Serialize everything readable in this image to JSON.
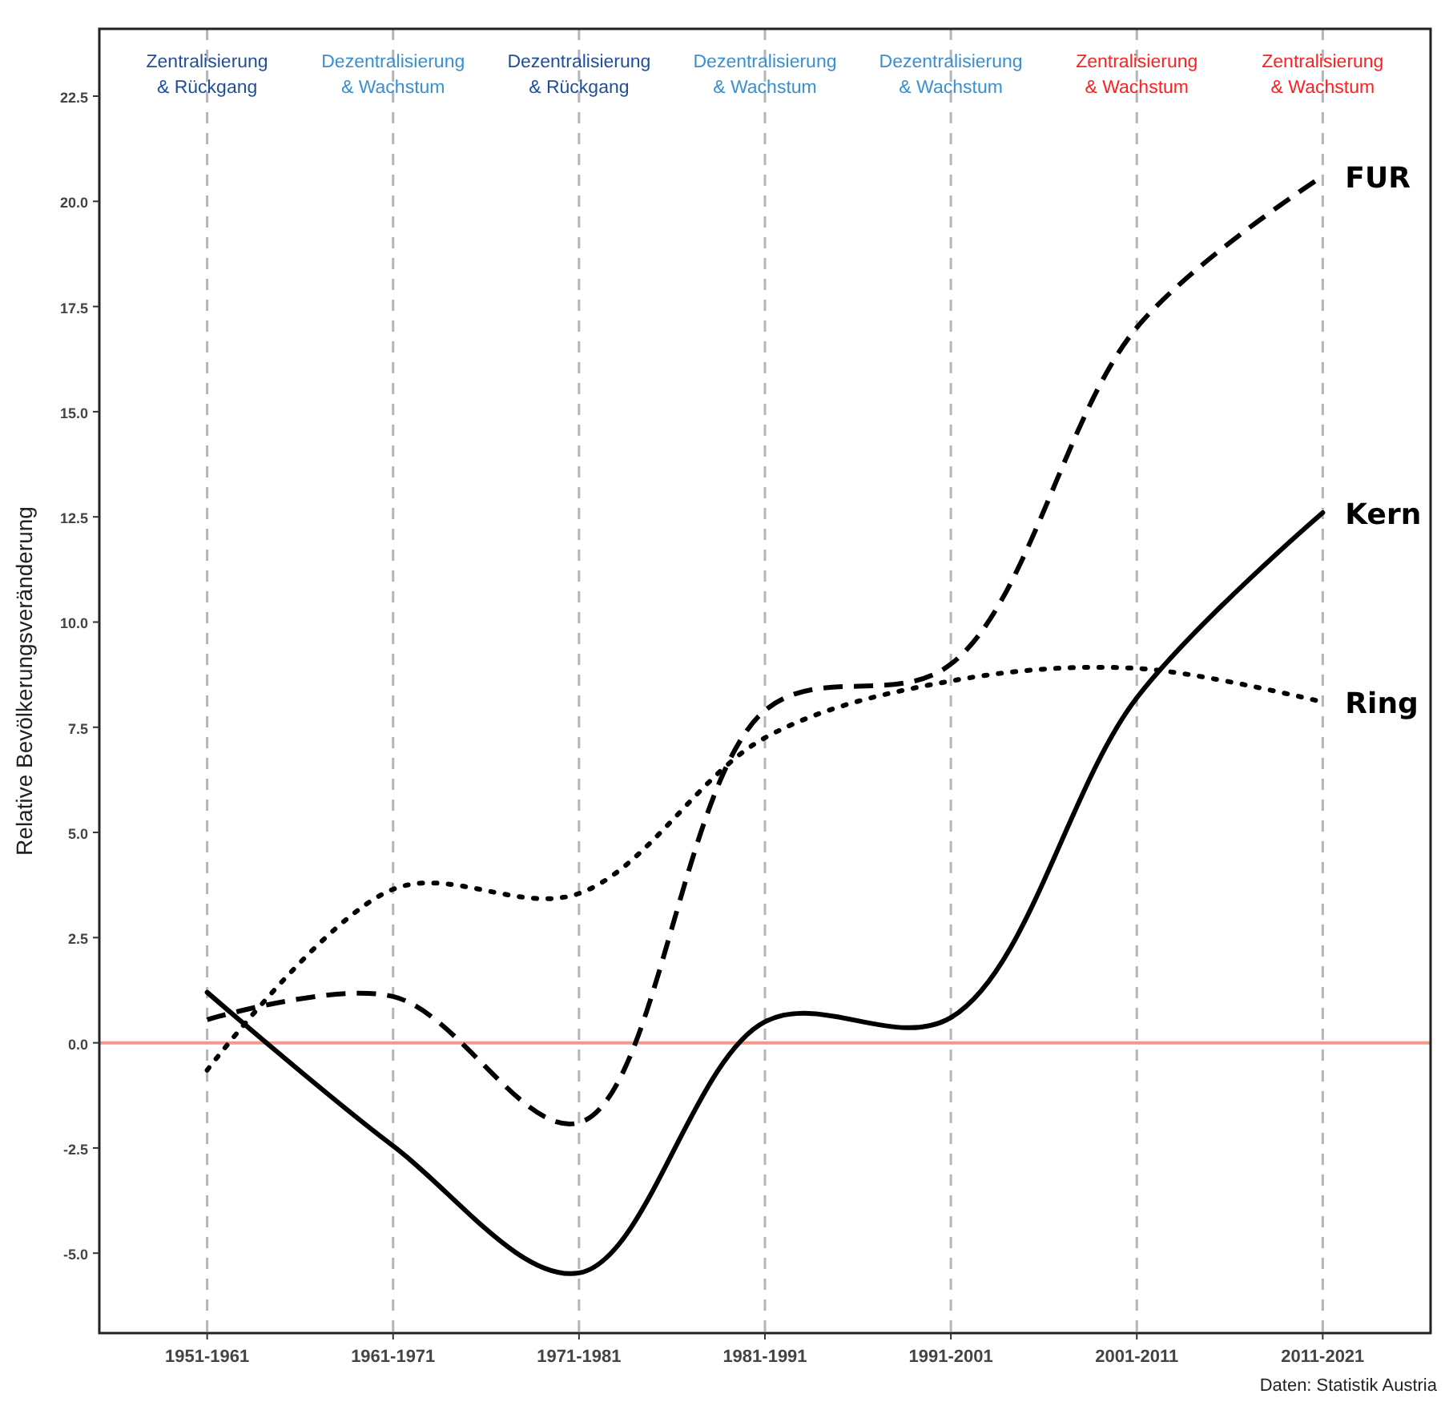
{
  "chart_data": {
    "type": "line",
    "ylabel": "Relative Bevölkerungsveränderung",
    "categories": [
      "1951-1961",
      "1961-1971",
      "1971-1981",
      "1981-1991",
      "1991-2001",
      "2001-2011",
      "2011-2021"
    ],
    "ylim": [
      -6.9,
      24.1
    ],
    "yticks": [
      {
        "value": -5,
        "label": "-5.0"
      },
      {
        "value": -2.5,
        "label": "-2.5"
      },
      {
        "value": 0,
        "label": "0.0"
      },
      {
        "value": 2.5,
        "label": "2.5"
      },
      {
        "value": 5,
        "label": "5.0"
      },
      {
        "value": 7.5,
        "label": "7.5"
      },
      {
        "value": 10,
        "label": "10.0"
      },
      {
        "value": 12.5,
        "label": "12.5"
      },
      {
        "value": 15,
        "label": "15.0"
      },
      {
        "value": 17.5,
        "label": "17.5"
      },
      {
        "value": 20,
        "label": "20.0"
      },
      {
        "value": 22.5,
        "label": "22.5"
      }
    ],
    "grid": "x",
    "series": [
      {
        "name": "FUR",
        "color": "#000000",
        "line_style": "dashed",
        "values": [
          0.55,
          1.1,
          -1.9,
          7.9,
          9.0,
          17.0,
          20.6
        ]
      },
      {
        "name": "Kern",
        "color": "#000000",
        "line_style": "solid",
        "values": [
          1.2,
          -2.45,
          -5.47,
          0.5,
          0.6,
          8.2,
          12.6
        ]
      },
      {
        "name": "Ring",
        "color": "#000000",
        "line_style": "dotted",
        "values": [
          -0.65,
          3.65,
          3.55,
          7.25,
          8.6,
          8.9,
          8.1
        ]
      }
    ],
    "ref_lines": [
      {
        "axis": "y",
        "value": 0,
        "color": "#f4978e"
      }
    ],
    "annotations": [
      "Zentralisierung\n& Rückgang",
      "Dezentralisierung\n& Wachstum",
      "Dezentralisierung\n& Rückgang",
      "Dezentralisierung\n& Wachstum",
      "Dezentralisierung\n& Wachstum",
      "Zentralisierung\n& Wachstum",
      "Zentralisierung\n& Wachstum",
      "Daten: Statistik Austria"
    ]
  }
}
